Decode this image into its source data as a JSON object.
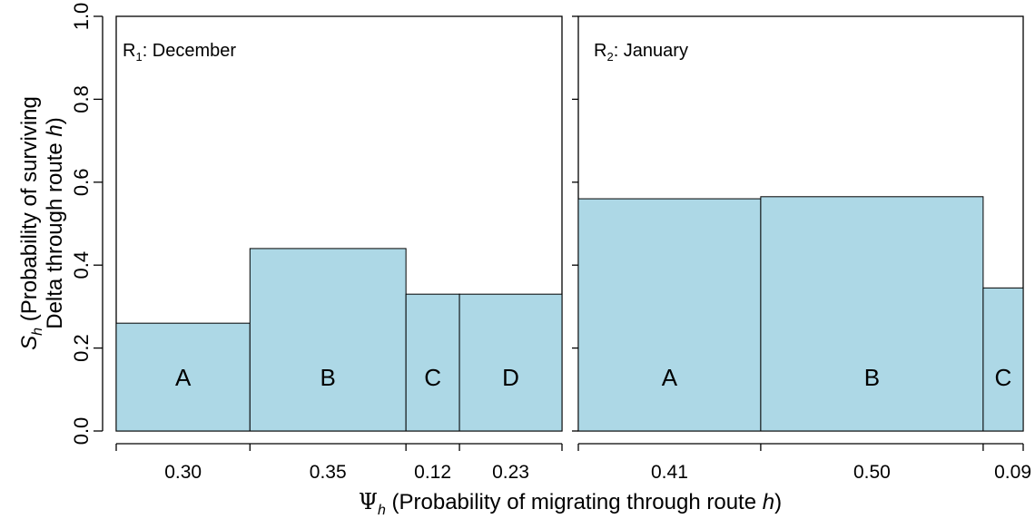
{
  "colors": {
    "bar_fill": "#add8e6",
    "stroke": "#000000",
    "background": "#ffffff"
  },
  "labels": {
    "ylabel_line1_var": "S",
    "ylabel_line1_sub": "h",
    "ylabel_line1_text": " (Probability of surviving",
    "ylabel_line2_text": "Delta through route ",
    "ylabel_line2_italic": "h",
    "ylabel_line2_end": ")",
    "xlabel_var": "Ψ",
    "xlabel_sub": "h",
    "xlabel_text": " (Probability of migrating through route ",
    "xlabel_italic": "h",
    "xlabel_end": ")"
  },
  "y_ticks": [
    "0.0",
    "0.2",
    "0.4",
    "0.6",
    "0.8",
    "1.0"
  ],
  "chart_data": [
    {
      "type": "bar",
      "title_main": "R",
      "title_sub": "1",
      "title_rest": ": December",
      "ylim": [
        0,
        1
      ],
      "categories": [
        "A",
        "B",
        "C",
        "D"
      ],
      "widths": [
        0.3,
        0.35,
        0.12,
        0.23
      ],
      "width_labels": [
        "0.30",
        "0.35",
        "0.12",
        "0.23"
      ],
      "values": [
        0.26,
        0.44,
        0.33,
        0.33
      ]
    },
    {
      "type": "bar",
      "title_main": "R",
      "title_sub": "2",
      "title_rest": ": January",
      "ylim": [
        0,
        1
      ],
      "categories": [
        "A",
        "B",
        "C"
      ],
      "widths": [
        0.41,
        0.5,
        0.09
      ],
      "width_labels": [
        "0.41",
        "0.50",
        "0.09"
      ],
      "values": [
        0.56,
        0.565,
        0.345
      ]
    }
  ]
}
